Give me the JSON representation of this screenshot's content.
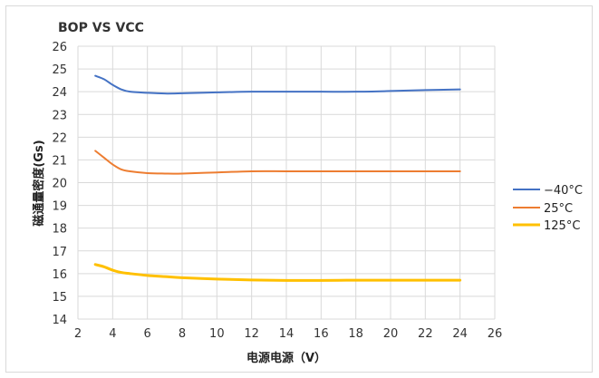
{
  "chart_data": {
    "type": "line",
    "title": "BOP VS VCC",
    "xlabel": "电源电源（V）",
    "ylabel": "磁通量密度(Gs)",
    "xlim": [
      2,
      26
    ],
    "ylim": [
      14,
      26
    ],
    "x_ticks": [
      "2",
      "4",
      "6",
      "8",
      "10",
      "12",
      "14",
      "16",
      "18",
      "20",
      "22",
      "24",
      "26"
    ],
    "y_ticks": [
      "14",
      "15",
      "16",
      "17",
      "18",
      "19",
      "20",
      "21",
      "22",
      "23",
      "24",
      "25",
      "26"
    ],
    "grid": true,
    "legend_position": "right",
    "series": [
      {
        "name": "−40°C",
        "color": "#4472C4",
        "x": [
          3,
          3.5,
          4,
          4.5,
          5,
          6,
          7,
          8,
          10,
          12,
          14,
          16,
          18,
          20,
          22,
          24
        ],
        "y": [
          24.7,
          24.55,
          24.3,
          24.1,
          24.0,
          23.95,
          23.92,
          23.93,
          23.97,
          24.0,
          24.0,
          24.0,
          24.0,
          24.03,
          24.07,
          24.1
        ]
      },
      {
        "name": "25°C",
        "color": "#ED7D31",
        "x": [
          3,
          3.5,
          4,
          4.5,
          5,
          6,
          7,
          8,
          10,
          12,
          14,
          16,
          18,
          20,
          22,
          24
        ],
        "y": [
          21.4,
          21.1,
          20.8,
          20.58,
          20.5,
          20.42,
          20.4,
          20.4,
          20.45,
          20.5,
          20.5,
          20.5,
          20.5,
          20.5,
          20.5,
          20.5
        ]
      },
      {
        "name": "125°C",
        "color": "#FFC000",
        "x": [
          3,
          3.5,
          4,
          4.5,
          5,
          6,
          7,
          8,
          10,
          12,
          14,
          16,
          18,
          20,
          22,
          24
        ],
        "y": [
          16.4,
          16.3,
          16.15,
          16.05,
          16.0,
          15.92,
          15.87,
          15.82,
          15.76,
          15.72,
          15.7,
          15.7,
          15.71,
          15.71,
          15.71,
          15.71
        ]
      }
    ]
  }
}
